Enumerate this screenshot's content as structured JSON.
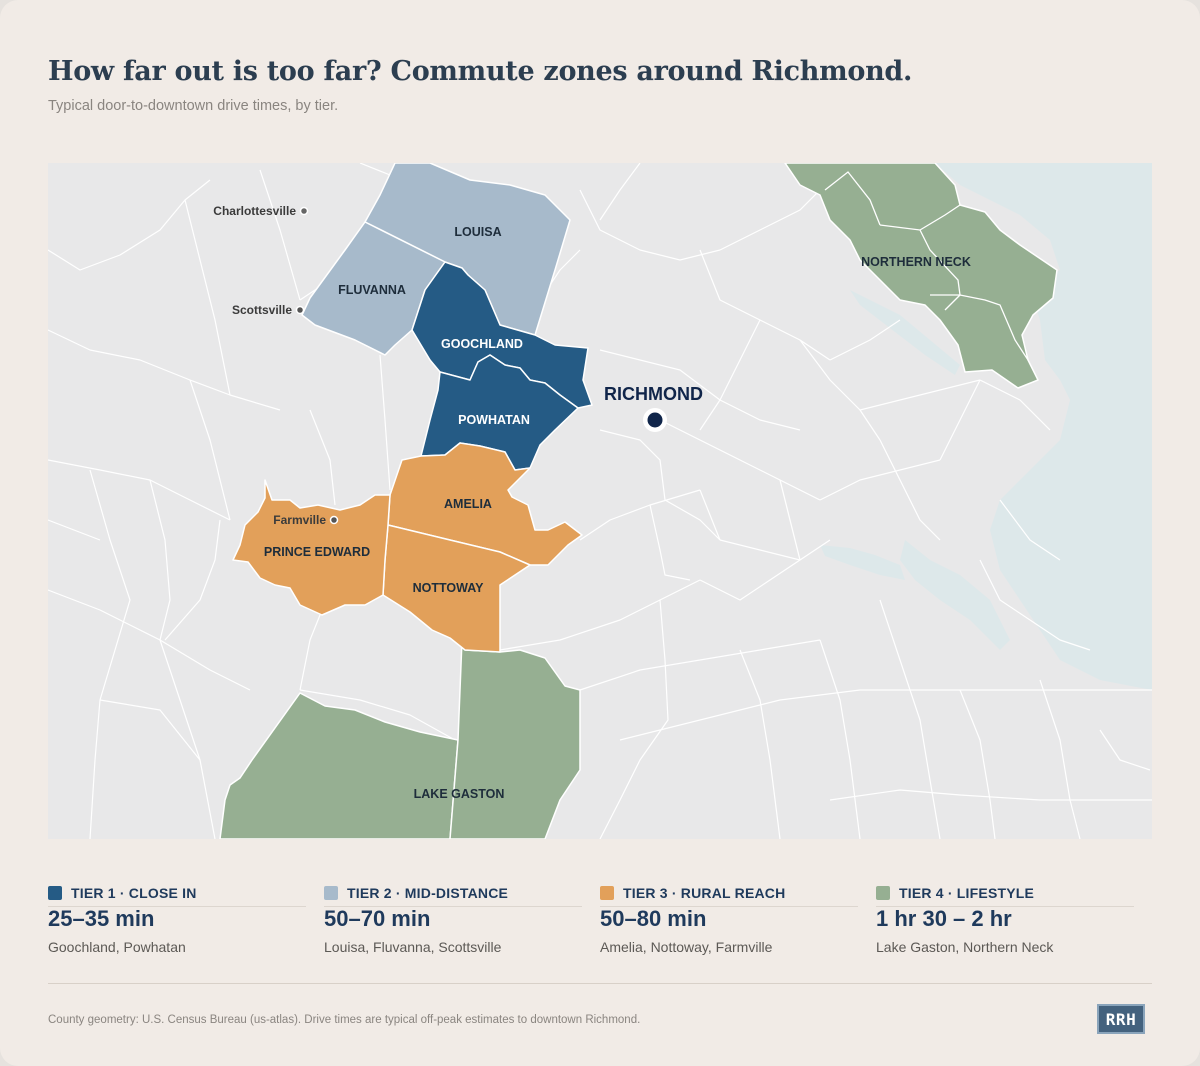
{
  "title": "How far out is too far? Commute zones around Richmond.",
  "subtitle": "Typical door-to-downtown drive times, by tier.",
  "map": {
    "colors": {
      "background": "#e8e8e9",
      "water": "#dde8ea",
      "borders": "#ffffff",
      "tier1": "#255b85",
      "tier2": "#a7bacb",
      "tier3": "#e2a05a",
      "tier4": "#96af92"
    },
    "regions": {
      "louisa": "LOUISA",
      "fluvanna": "FLUVANNA",
      "goochland": "GOOCHLAND",
      "powhatan": "POWHATAN",
      "amelia": "AMELIA",
      "prince_edward": "PRINCE EDWARD",
      "nottoway": "NOTTOWAY",
      "lake_gaston": "LAKE GASTON",
      "northern_neck": "NORTHERN NECK"
    },
    "towns": {
      "charlottesville": "Charlottesville",
      "scottsville": "Scottsville",
      "farmville": "Farmville"
    },
    "city": "RICHMOND"
  },
  "legend": [
    {
      "name": "TIER 1 · CLOSE IN",
      "time": "25–35 min",
      "places": "Goochland, Powhatan",
      "color": "#255b85"
    },
    {
      "name": "TIER 2 · MID-DISTANCE",
      "time": "50–70 min",
      "places": "Louisa, Fluvanna, Scottsville",
      "color": "#a7bacb"
    },
    {
      "name": "TIER 3 · RURAL REACH",
      "time": "50–80 min",
      "places": "Amelia, Nottoway, Farmville",
      "color": "#e2a05a"
    },
    {
      "name": "TIER 4 · LIFESTYLE",
      "time": "1 hr 30 – 2 hr",
      "places": "Lake Gaston, Northern Neck",
      "color": "#96af92"
    }
  ],
  "footnote": "County geometry: U.S. Census Bureau (us-atlas). Drive times are typical off-peak estimates to downtown Richmond.",
  "logo": "RRH"
}
